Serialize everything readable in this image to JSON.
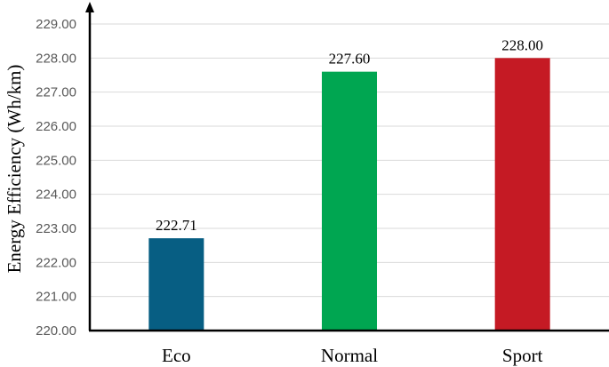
{
  "chart_data": {
    "type": "bar",
    "title": "",
    "xlabel": "",
    "ylabel": "Energy Efficiency (Wh/km)",
    "categories": [
      "Eco",
      "Normal",
      "Sport"
    ],
    "values": [
      222.71,
      227.6,
      228.0
    ],
    "data_labels": [
      "222.71",
      "227.60",
      "228.00"
    ],
    "colors": [
      "#075e83",
      "#00a651",
      "#c51a24"
    ],
    "ylim": [
      220,
      229
    ],
    "y_ticks": [
      "220.00",
      "221.00",
      "222.00",
      "223.00",
      "224.00",
      "225.00",
      "226.00",
      "227.00",
      "228.00",
      "229.00"
    ],
    "grid": true,
    "legend": "none"
  }
}
